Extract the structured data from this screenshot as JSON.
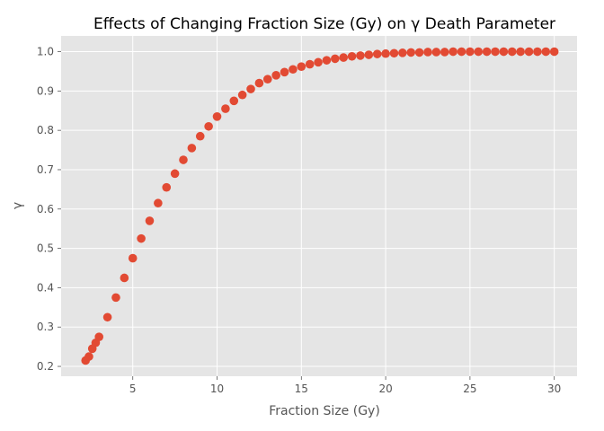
{
  "chart_data": {
    "type": "scatter",
    "title": "Effects of Changing Fraction Size (Gy) on γ Death Parameter",
    "xlabel": "Fraction Size (Gy)",
    "ylabel": "γ",
    "xlim": [
      0.75,
      31.35
    ],
    "ylim": [
      0.175,
      1.04
    ],
    "xticks": [
      5,
      10,
      15,
      20,
      25,
      30
    ],
    "yticks": [
      0.2,
      0.3,
      0.4,
      0.5,
      0.6,
      0.7,
      0.8,
      0.9,
      1.0
    ],
    "xtick_labels": [
      "5",
      "10",
      "15",
      "20",
      "25",
      "30"
    ],
    "ytick_labels": [
      "0.2",
      "0.3",
      "0.4",
      "0.5",
      "0.6",
      "0.7",
      "0.8",
      "0.9",
      "1.0"
    ],
    "grid": true,
    "style": "ggplot",
    "colors": {
      "plot_background": "#e5e5e5",
      "grid": "#ffffff",
      "marker": "#e24a33",
      "text": "#555555"
    },
    "series": [
      {
        "x": [
          2.2,
          2.4,
          2.6,
          2.8,
          3.0,
          3.5,
          4.0,
          4.5,
          5.0,
          5.5,
          6.0,
          6.5,
          7.0,
          7.5,
          8.0,
          8.5,
          9.0,
          9.5,
          10.0,
          10.5,
          11.0,
          11.5,
          12.0,
          12.5,
          13.0,
          13.5,
          14.0,
          14.5,
          15.0,
          15.5,
          16.0,
          16.5,
          17.0,
          17.5,
          18.0,
          18.5,
          19.0,
          19.5,
          20.0,
          20.5,
          21.0,
          21.5,
          22.0,
          22.5,
          23.0,
          23.5,
          24.0,
          24.5,
          25.0,
          25.5,
          26.0,
          26.5,
          27.0,
          27.5,
          28.0,
          28.5,
          29.0,
          29.5,
          30.0
        ],
        "y": [
          0.215,
          0.225,
          0.245,
          0.26,
          0.275,
          0.325,
          0.375,
          0.425,
          0.475,
          0.525,
          0.57,
          0.615,
          0.655,
          0.69,
          0.725,
          0.755,
          0.785,
          0.81,
          0.835,
          0.855,
          0.875,
          0.89,
          0.905,
          0.92,
          0.93,
          0.94,
          0.948,
          0.955,
          0.962,
          0.968,
          0.973,
          0.978,
          0.982,
          0.985,
          0.988,
          0.99,
          0.992,
          0.994,
          0.995,
          0.996,
          0.997,
          0.998,
          0.998,
          0.999,
          0.999,
          0.999,
          1.0,
          1.0,
          1.0,
          1.0,
          1.0,
          1.0,
          1.0,
          1.0,
          1.0,
          1.0,
          1.0,
          1.0,
          1.0
        ]
      }
    ]
  }
}
